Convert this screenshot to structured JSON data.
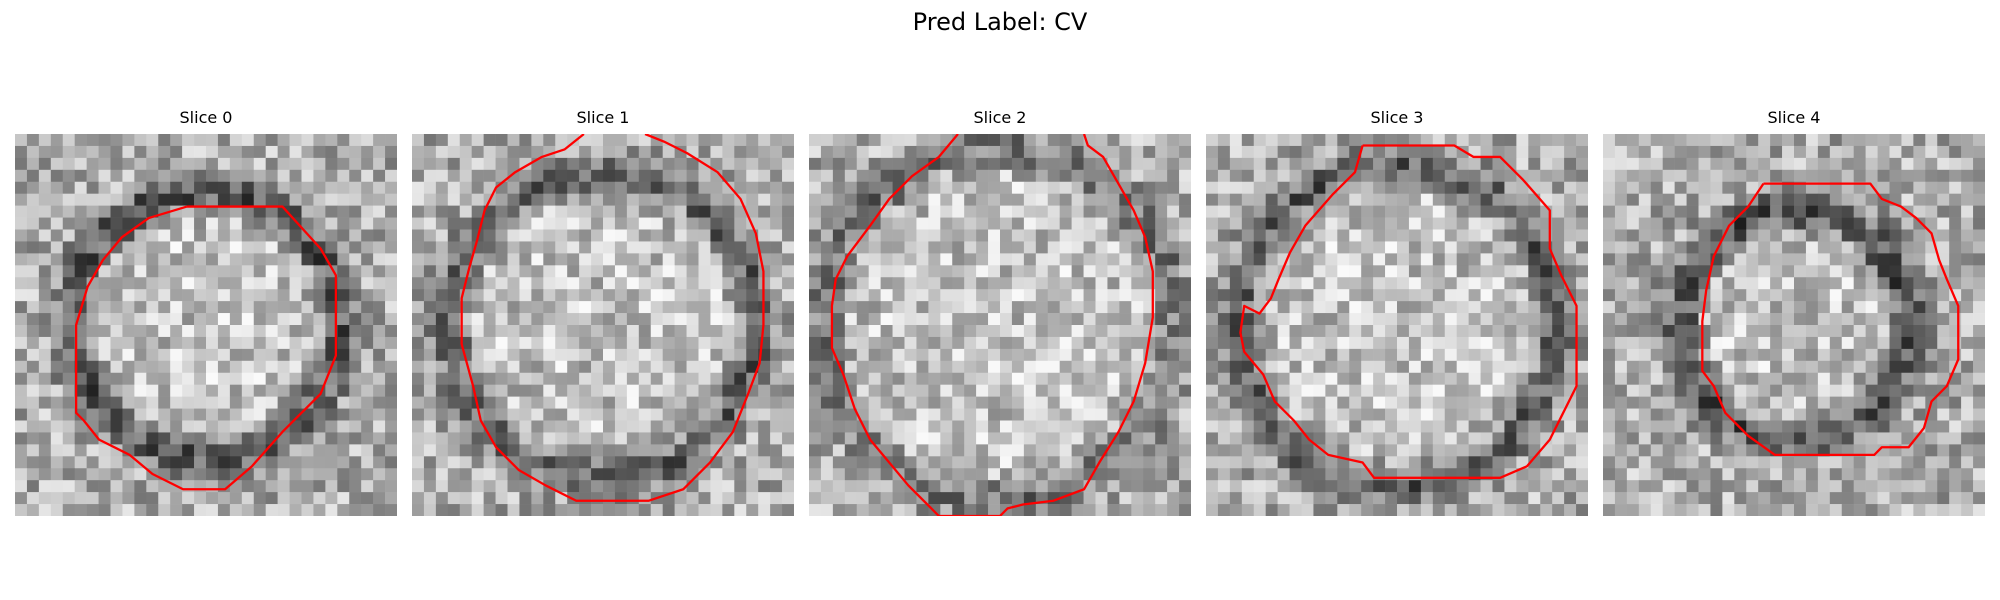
{
  "figure": {
    "title": "Pred Label: CV"
  },
  "panels": [
    {
      "title": "Slice 0",
      "dark_ring": 0.85,
      "ring_radius": 0.35,
      "contour": [
        [
          0.45,
          0.19
        ],
        [
          0.7,
          0.19
        ],
        [
          0.8,
          0.3
        ],
        [
          0.84,
          0.37
        ],
        [
          0.84,
          0.58
        ],
        [
          0.8,
          0.68
        ],
        [
          0.7,
          0.78
        ],
        [
          0.62,
          0.87
        ],
        [
          0.55,
          0.93
        ],
        [
          0.44,
          0.93
        ],
        [
          0.36,
          0.89
        ],
        [
          0.3,
          0.84
        ],
        [
          0.22,
          0.8
        ],
        [
          0.18,
          0.75
        ],
        [
          0.16,
          0.73
        ],
        [
          0.16,
          0.5
        ],
        [
          0.19,
          0.4
        ],
        [
          0.23,
          0.33
        ],
        [
          0.28,
          0.27
        ],
        [
          0.35,
          0.22
        ],
        [
          0.45,
          0.19
        ]
      ]
    },
    {
      "title": "Slice 1",
      "dark_ring": 0.75,
      "ring_radius": 0.4,
      "contour": [
        [
          0.45,
          0.0
        ],
        [
          0.4,
          0.04
        ],
        [
          0.34,
          0.06
        ],
        [
          0.27,
          0.1
        ],
        [
          0.22,
          0.14
        ],
        [
          0.19,
          0.2
        ],
        [
          0.17,
          0.28
        ],
        [
          0.15,
          0.35
        ],
        [
          0.13,
          0.43
        ],
        [
          0.13,
          0.55
        ],
        [
          0.16,
          0.66
        ],
        [
          0.18,
          0.75
        ],
        [
          0.22,
          0.82
        ],
        [
          0.28,
          0.88
        ],
        [
          0.35,
          0.92
        ],
        [
          0.43,
          0.96
        ],
        [
          0.53,
          0.96
        ],
        [
          0.62,
          0.96
        ],
        [
          0.71,
          0.93
        ],
        [
          0.78,
          0.86
        ],
        [
          0.84,
          0.78
        ],
        [
          0.88,
          0.68
        ],
        [
          0.91,
          0.6
        ],
        [
          0.92,
          0.5
        ],
        [
          0.92,
          0.36
        ],
        [
          0.9,
          0.26
        ],
        [
          0.86,
          0.17
        ],
        [
          0.8,
          0.1
        ],
        [
          0.72,
          0.05
        ],
        [
          0.66,
          0.02
        ],
        [
          0.61,
          0.0
        ]
      ]
    },
    {
      "title": "Slice 2",
      "dark_ring": 0.55,
      "ring_radius": 0.46,
      "contour": [
        [
          0.39,
          0.0
        ],
        [
          0.34,
          0.06
        ],
        [
          0.27,
          0.11
        ],
        [
          0.21,
          0.17
        ],
        [
          0.16,
          0.24
        ],
        [
          0.1,
          0.32
        ],
        [
          0.07,
          0.38
        ],
        [
          0.06,
          0.45
        ],
        [
          0.06,
          0.56
        ],
        [
          0.09,
          0.63
        ],
        [
          0.12,
          0.72
        ],
        [
          0.16,
          0.8
        ],
        [
          0.21,
          0.86
        ],
        [
          0.26,
          0.92
        ],
        [
          0.32,
          0.98
        ],
        [
          0.34,
          1.0
        ],
        [
          0.5,
          1.0
        ],
        [
          0.52,
          0.98
        ],
        [
          0.56,
          0.97
        ],
        [
          0.64,
          0.96
        ],
        [
          0.72,
          0.93
        ],
        [
          0.76,
          0.86
        ],
        [
          0.81,
          0.78
        ],
        [
          0.85,
          0.7
        ],
        [
          0.88,
          0.6
        ],
        [
          0.9,
          0.48
        ],
        [
          0.9,
          0.36
        ],
        [
          0.88,
          0.27
        ],
        [
          0.85,
          0.2
        ],
        [
          0.81,
          0.13
        ],
        [
          0.77,
          0.06
        ],
        [
          0.73,
          0.03
        ],
        [
          0.72,
          0.0
        ]
      ]
    },
    {
      "title": "Slice 3",
      "dark_ring": 0.75,
      "ring_radius": 0.42,
      "contour": [
        [
          0.41,
          0.03
        ],
        [
          0.65,
          0.03
        ],
        [
          0.7,
          0.06
        ],
        [
          0.77,
          0.06
        ],
        [
          0.83,
          0.12
        ],
        [
          0.9,
          0.2
        ],
        [
          0.9,
          0.3
        ],
        [
          0.93,
          0.37
        ],
        [
          0.97,
          0.45
        ],
        [
          0.97,
          0.66
        ],
        [
          0.93,
          0.74
        ],
        [
          0.9,
          0.8
        ],
        [
          0.84,
          0.87
        ],
        [
          0.77,
          0.9
        ],
        [
          0.71,
          0.9
        ],
        [
          0.44,
          0.9
        ],
        [
          0.41,
          0.86
        ],
        [
          0.32,
          0.84
        ],
        [
          0.27,
          0.8
        ],
        [
          0.23,
          0.75
        ],
        [
          0.18,
          0.7
        ],
        [
          0.15,
          0.63
        ],
        [
          0.1,
          0.57
        ],
        [
          0.09,
          0.52
        ],
        [
          0.1,
          0.45
        ],
        [
          0.14,
          0.47
        ],
        [
          0.17,
          0.43
        ],
        [
          0.19,
          0.38
        ],
        [
          0.22,
          0.31
        ],
        [
          0.26,
          0.24
        ],
        [
          0.33,
          0.16
        ],
        [
          0.39,
          0.1
        ],
        [
          0.41,
          0.03
        ]
      ]
    },
    {
      "title": "Slice 4",
      "dark_ring": 0.9,
      "ring_radius": 0.3,
      "contour": [
        [
          0.42,
          0.13
        ],
        [
          0.7,
          0.13
        ],
        [
          0.73,
          0.17
        ],
        [
          0.78,
          0.19
        ],
        [
          0.82,
          0.22
        ],
        [
          0.86,
          0.26
        ],
        [
          0.88,
          0.33
        ],
        [
          0.9,
          0.38
        ],
        [
          0.93,
          0.45
        ],
        [
          0.93,
          0.59
        ],
        [
          0.9,
          0.66
        ],
        [
          0.86,
          0.7
        ],
        [
          0.84,
          0.77
        ],
        [
          0.8,
          0.82
        ],
        [
          0.73,
          0.82
        ],
        [
          0.71,
          0.84
        ],
        [
          0.65,
          0.84
        ],
        [
          0.45,
          0.84
        ],
        [
          0.38,
          0.79
        ],
        [
          0.32,
          0.73
        ],
        [
          0.29,
          0.66
        ],
        [
          0.26,
          0.62
        ],
        [
          0.26,
          0.49
        ],
        [
          0.27,
          0.41
        ],
        [
          0.29,
          0.32
        ],
        [
          0.33,
          0.24
        ],
        [
          0.38,
          0.19
        ],
        [
          0.42,
          0.13
        ]
      ]
    }
  ],
  "colors": {
    "contour": "#ff0000",
    "background": "#ffffff"
  },
  "icons": []
}
